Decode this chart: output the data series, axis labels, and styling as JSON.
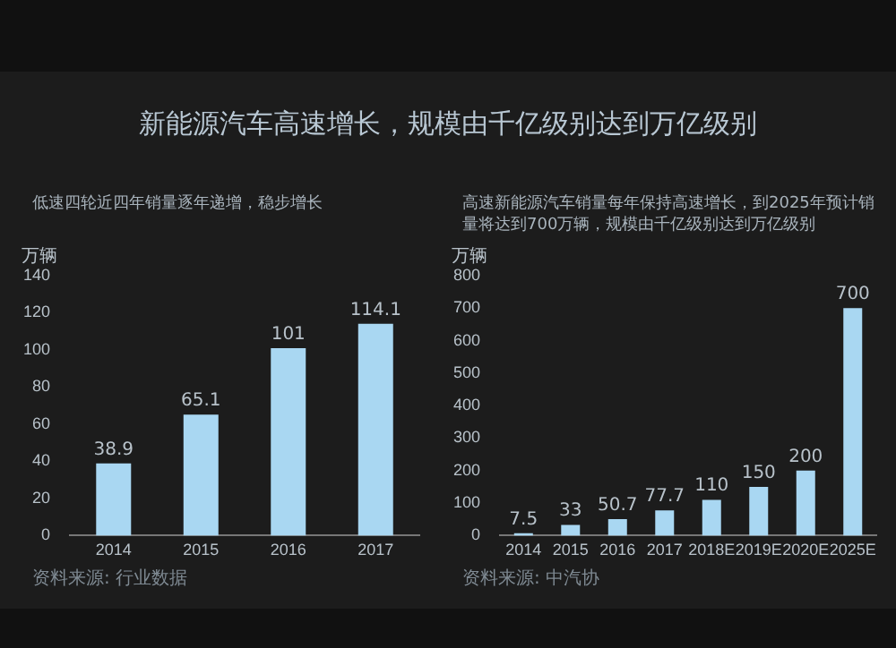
{
  "chart_data": [
    {
      "type": "bar",
      "title": "新能源汽车高速增长，规模由千亿级别达到万亿级别",
      "subtitle": "低速四轮近四年销量逐年递增，稳步增长",
      "ylabel": "万辆",
      "categories": [
        "2014",
        "2015",
        "2016",
        "2017"
      ],
      "values": [
        38.9,
        65.1,
        101,
        114.1
      ],
      "color": "#a9d7f2",
      "ylim": [
        0,
        140
      ],
      "yticks": [
        0,
        20,
        40,
        60,
        80,
        100,
        120,
        140
      ],
      "grid": false,
      "legend": false,
      "data_labels": true,
      "annotations": [
        "资料来源: 行业数据"
      ]
    },
    {
      "type": "bar",
      "subtitle": "高速新能源汽车销量每年保持高速增长，到2025年预计销量将达到700万辆，规模由千亿级别达到万亿级别",
      "ylabel": "万辆",
      "categories": [
        "2014",
        "2015",
        "2016",
        "2017",
        "2018E",
        "2019E",
        "2020E",
        "2025E"
      ],
      "values": [
        7.5,
        33,
        50.7,
        77.7,
        110,
        150,
        200,
        700
      ],
      "color": "#a9d7f2",
      "ylim": [
        0,
        800
      ],
      "yticks": [
        0,
        100,
        200,
        300,
        400,
        500,
        600,
        700,
        800
      ],
      "grid": false,
      "legend": false,
      "data_labels": true,
      "annotations": [
        "资料来源: 中汽协"
      ]
    }
  ]
}
